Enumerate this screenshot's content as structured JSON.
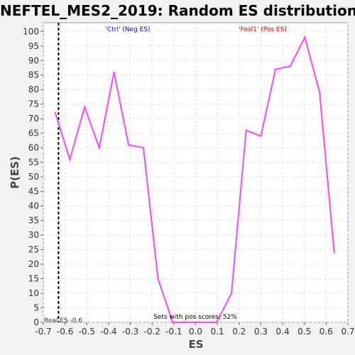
{
  "chart_data": {
    "type": "line",
    "title": "NEFTEL_MES2_2019: Random ES distribution",
    "xlabel": "ES",
    "ylabel": "P(ES)",
    "xlim": [
      -0.7,
      0.7
    ],
    "ylim": [
      0,
      103
    ],
    "xticks": [
      -0.7,
      -0.6,
      -0.5,
      -0.4,
      -0.3,
      -0.2,
      -0.1,
      0.0,
      0.1,
      0.2,
      0.3,
      0.4,
      0.5,
      0.6,
      0.7
    ],
    "xtick_labels": [
      "-0.7",
      "-0.6",
      "-0.5",
      "-0.4",
      "-0.3",
      "-0.2",
      "-0.1",
      "0.0",
      "0.1",
      "0.2",
      "0.3",
      "0.4",
      "0.5",
      "0.6",
      "0.7"
    ],
    "yticks": [
      0,
      5,
      10,
      15,
      20,
      25,
      30,
      35,
      40,
      45,
      50,
      55,
      60,
      65,
      70,
      75,
      80,
      85,
      90,
      95,
      100
    ],
    "ytick_labels": [
      "0",
      "5",
      "10",
      "15",
      "20",
      "25",
      "30",
      "35",
      "40",
      "45",
      "50",
      "55",
      "60",
      "65",
      "70",
      "75",
      "80",
      "85",
      "90",
      "95",
      "100"
    ],
    "grid": true,
    "series": [
      {
        "color": "#ff44ff",
        "x": [
          -0.645,
          -0.578,
          -0.51,
          -0.443,
          -0.375,
          -0.308,
          -0.24,
          -0.173,
          -0.105,
          -0.038,
          0.03,
          0.097,
          0.165,
          0.232,
          0.3,
          0.367,
          0.435,
          0.502,
          0.57,
          0.637
        ],
        "y": [
          72,
          56,
          74,
          60,
          86,
          61,
          60,
          15,
          0,
          0,
          0,
          0,
          10,
          66,
          64,
          87,
          88,
          98,
          79,
          24
        ]
      }
    ],
    "real_es": -0.6,
    "annotations": {
      "neg_label": "'Ctrl' (Neg ES)",
      "neg_color": "#0000cc",
      "pos_label": "'Fosl1' (Pos ES)",
      "pos_color": "#cc0000",
      "real_es_label": "Real ES -0.6",
      "pos_scores_label": "Sets with pos scores: 52%"
    }
  }
}
